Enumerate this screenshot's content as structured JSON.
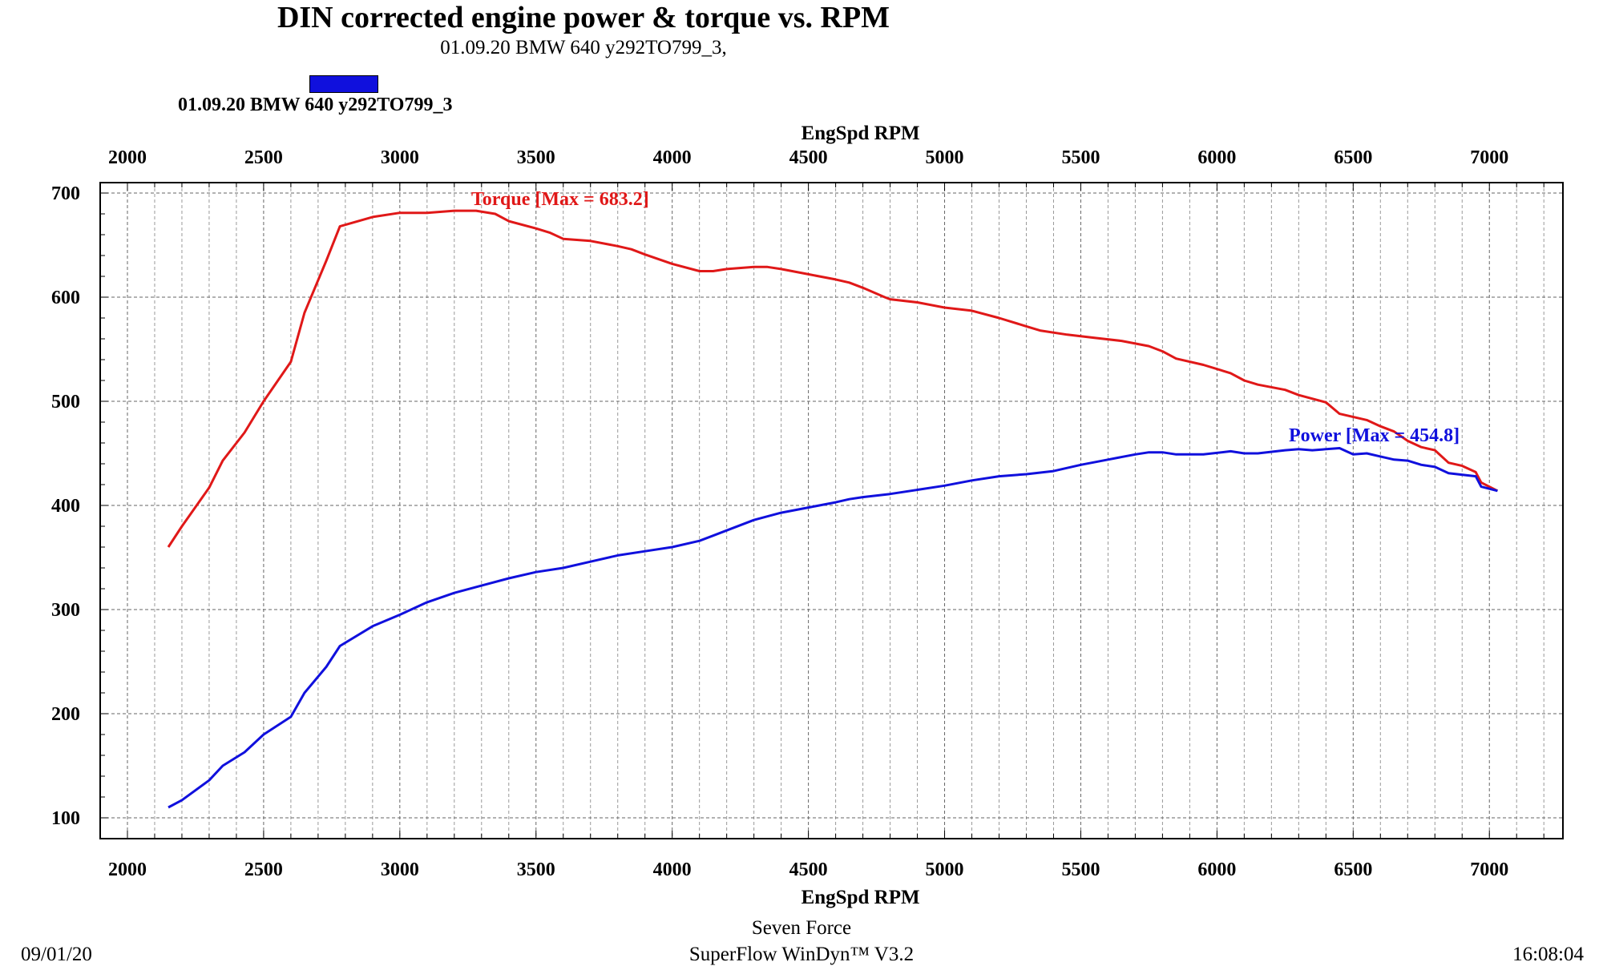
{
  "header": {
    "title": "DIN corrected engine power & torque vs. RPM",
    "subtitle": "01.09.20 BMW 640  y292TO799_3,",
    "legend_label": "01.09.20 BMW 640  y292TO799_3"
  },
  "footer": {
    "company": "Seven Force",
    "software": "SuperFlow WinDyn™ V3.2",
    "date": "09/01/20",
    "time": "16:08:04"
  },
  "colors": {
    "torque": "#e01818",
    "power": "#1010dd",
    "legend_swatch": "#1010dd"
  },
  "chart_data": {
    "type": "line",
    "xlabel_top": "EngSpd RPM",
    "xlabel_bottom": "EngSpd RPM",
    "ylabel": "",
    "xlim": [
      1900,
      7270
    ],
    "ylim": [
      80,
      710
    ],
    "x_ticks": [
      "2000",
      "2500",
      "3000",
      "3500",
      "4000",
      "4500",
      "5000",
      "5500",
      "6000",
      "6500",
      "7000"
    ],
    "y_ticks": [
      "100",
      "200",
      "300",
      "400",
      "500",
      "600",
      "700"
    ],
    "grid": true,
    "legend_position": "top-left",
    "series": [
      {
        "name": "Torque",
        "annotation": "Torque [Max = 683.2]",
        "max": 683.2,
        "color": "#e01818",
        "points": [
          [
            2150,
            360
          ],
          [
            2200,
            380
          ],
          [
            2300,
            417
          ],
          [
            2350,
            443
          ],
          [
            2430,
            470
          ],
          [
            2500,
            500
          ],
          [
            2600,
            538
          ],
          [
            2650,
            585
          ],
          [
            2730,
            635
          ],
          [
            2780,
            668
          ],
          [
            2900,
            677
          ],
          [
            3000,
            681
          ],
          [
            3100,
            681
          ],
          [
            3200,
            683
          ],
          [
            3280,
            683
          ],
          [
            3350,
            680
          ],
          [
            3400,
            673
          ],
          [
            3500,
            666
          ],
          [
            3550,
            662
          ],
          [
            3600,
            656
          ],
          [
            3700,
            654
          ],
          [
            3800,
            649
          ],
          [
            3850,
            646
          ],
          [
            3900,
            641
          ],
          [
            4000,
            632
          ],
          [
            4100,
            625
          ],
          [
            4150,
            625
          ],
          [
            4200,
            627
          ],
          [
            4300,
            629
          ],
          [
            4350,
            629
          ],
          [
            4400,
            627
          ],
          [
            4500,
            622
          ],
          [
            4600,
            617
          ],
          [
            4650,
            614
          ],
          [
            4700,
            609
          ],
          [
            4780,
            600
          ],
          [
            4800,
            598
          ],
          [
            4900,
            595
          ],
          [
            5000,
            590
          ],
          [
            5100,
            587
          ],
          [
            5200,
            580
          ],
          [
            5300,
            572
          ],
          [
            5350,
            568
          ],
          [
            5450,
            564
          ],
          [
            5550,
            561
          ],
          [
            5650,
            558
          ],
          [
            5750,
            553
          ],
          [
            5800,
            548
          ],
          [
            5850,
            541
          ],
          [
            5950,
            535
          ],
          [
            6050,
            527
          ],
          [
            6100,
            520
          ],
          [
            6150,
            516
          ],
          [
            6250,
            511
          ],
          [
            6300,
            506
          ],
          [
            6400,
            499
          ],
          [
            6450,
            488
          ],
          [
            6550,
            482
          ],
          [
            6600,
            476
          ],
          [
            6650,
            471
          ],
          [
            6700,
            462
          ],
          [
            6750,
            456
          ],
          [
            6800,
            453
          ],
          [
            6850,
            441
          ],
          [
            6900,
            438
          ],
          [
            6950,
            432
          ],
          [
            6970,
            422
          ],
          [
            7030,
            414
          ]
        ]
      },
      {
        "name": "Power",
        "annotation": "Power  [Max = 454.8]",
        "max": 454.8,
        "color": "#1010dd",
        "points": [
          [
            2150,
            110
          ],
          [
            2200,
            117
          ],
          [
            2300,
            136
          ],
          [
            2350,
            150
          ],
          [
            2430,
            163
          ],
          [
            2500,
            180
          ],
          [
            2600,
            197
          ],
          [
            2650,
            220
          ],
          [
            2730,
            245
          ],
          [
            2780,
            265
          ],
          [
            2900,
            284
          ],
          [
            3000,
            295
          ],
          [
            3100,
            307
          ],
          [
            3200,
            316
          ],
          [
            3300,
            323
          ],
          [
            3400,
            330
          ],
          [
            3500,
            336
          ],
          [
            3600,
            340
          ],
          [
            3700,
            346
          ],
          [
            3800,
            352
          ],
          [
            3900,
            356
          ],
          [
            4000,
            360
          ],
          [
            4100,
            366
          ],
          [
            4200,
            376
          ],
          [
            4300,
            386
          ],
          [
            4400,
            393
          ],
          [
            4500,
            398
          ],
          [
            4600,
            403
          ],
          [
            4650,
            406
          ],
          [
            4700,
            408
          ],
          [
            4800,
            411
          ],
          [
            4900,
            415
          ],
          [
            5000,
            419
          ],
          [
            5100,
            424
          ],
          [
            5200,
            428
          ],
          [
            5300,
            430
          ],
          [
            5400,
            433
          ],
          [
            5500,
            439
          ],
          [
            5600,
            444
          ],
          [
            5700,
            449
          ],
          [
            5750,
            451
          ],
          [
            5800,
            451
          ],
          [
            5850,
            449
          ],
          [
            5950,
            449
          ],
          [
            6050,
            452
          ],
          [
            6100,
            450
          ],
          [
            6150,
            450
          ],
          [
            6250,
            453
          ],
          [
            6300,
            454
          ],
          [
            6350,
            453
          ],
          [
            6450,
            455
          ],
          [
            6500,
            449
          ],
          [
            6550,
            450
          ],
          [
            6600,
            447
          ],
          [
            6650,
            444
          ],
          [
            6700,
            443
          ],
          [
            6750,
            439
          ],
          [
            6800,
            437
          ],
          [
            6850,
            431
          ],
          [
            6950,
            428
          ],
          [
            6970,
            418
          ],
          [
            7030,
            414
          ]
        ]
      }
    ]
  }
}
